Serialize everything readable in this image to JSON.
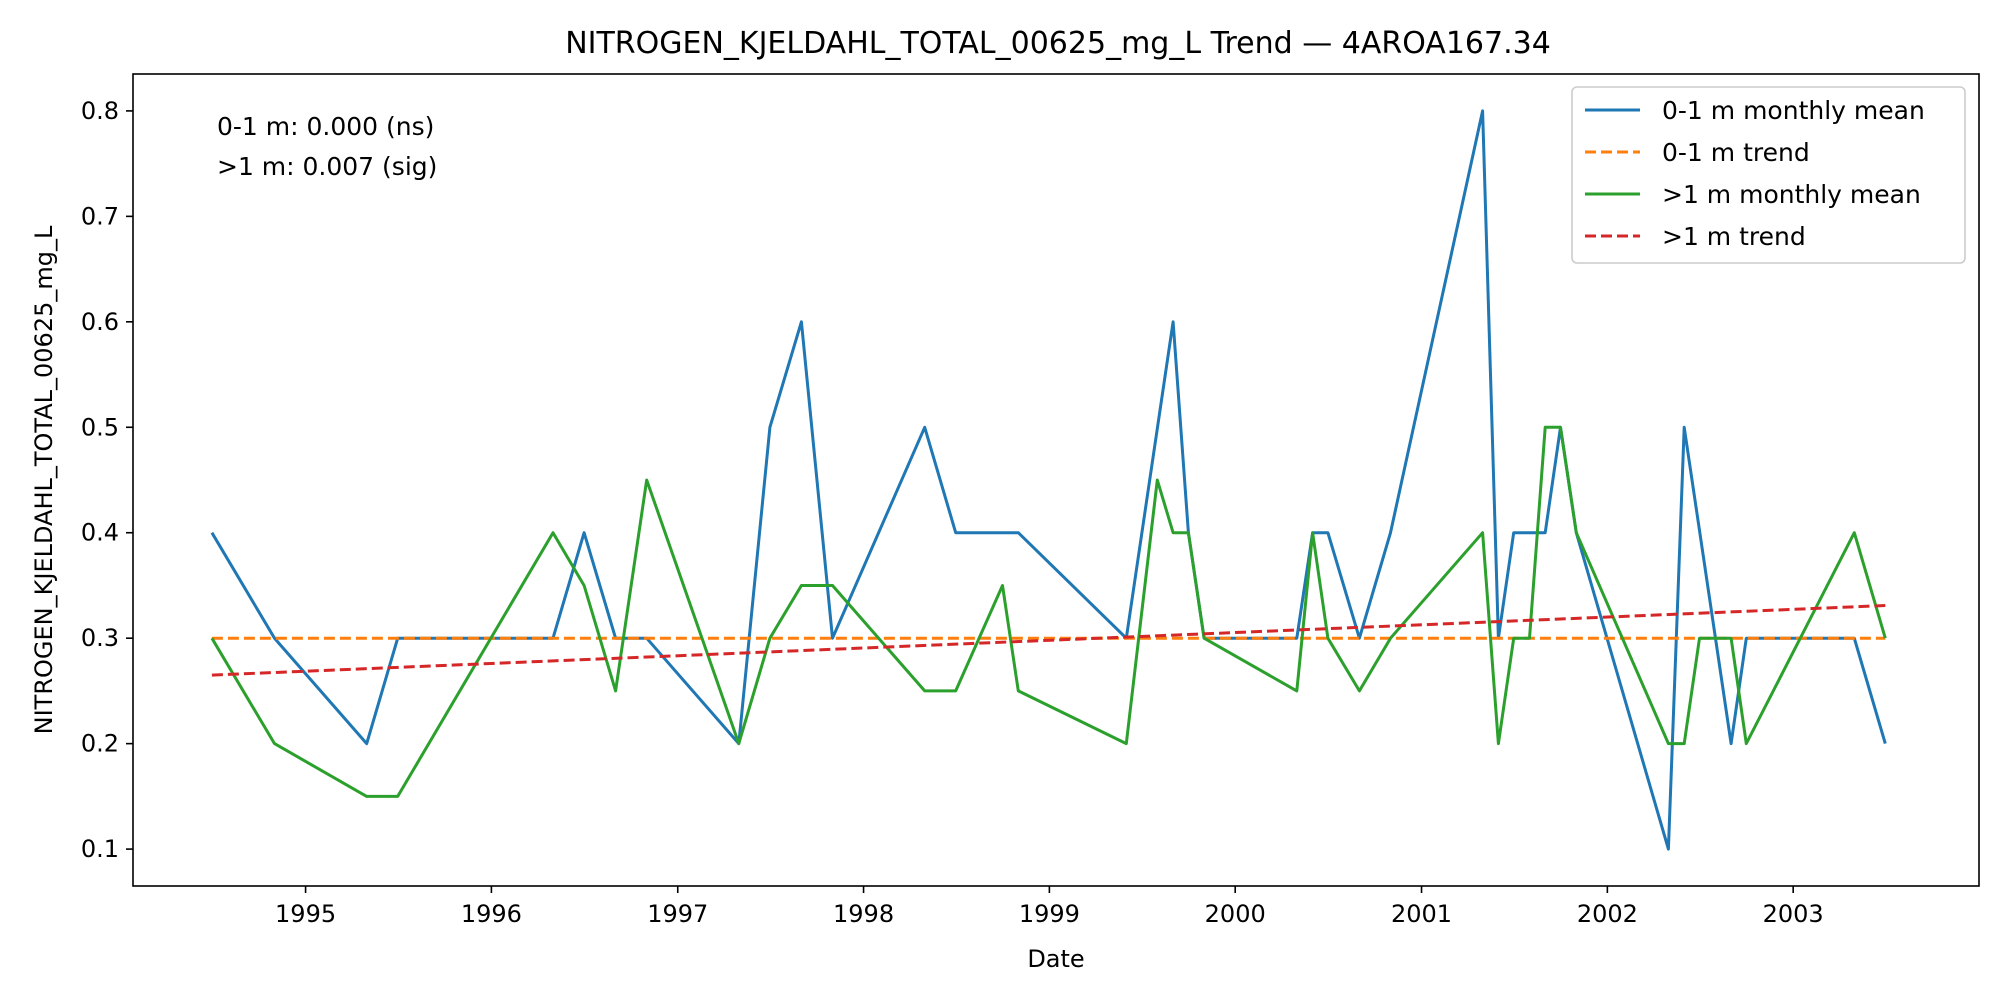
{
  "chart_data": {
    "type": "line",
    "title": "NITROGEN_KJELDAHL_TOTAL_00625_mg_L Trend — 4AROA167.34",
    "xlabel": "Date",
    "ylabel": "NITROGEN_KJELDAHL_TOTAL_00625_mg_L",
    "xlim": [
      "1994-01-27",
      "2004-01-01"
    ],
    "ylim": [
      0.065,
      0.835
    ],
    "x_ticks": [
      "1995",
      "1996",
      "1997",
      "1998",
      "1999",
      "2000",
      "2001",
      "2002",
      "2003"
    ],
    "y_ticks": [
      "0.1",
      "0.2",
      "0.3",
      "0.4",
      "0.5",
      "0.6",
      "0.7",
      "0.8"
    ],
    "grid": false,
    "legend_position": "top-right",
    "annotations": [
      "0-1 m: 0.000 (ns)",
      ">1 m: 0.007 (sig)"
    ],
    "series": [
      {
        "name": "0-1 m monthly mean",
        "color": "#1f77b4",
        "style": "solid",
        "points": [
          [
            "1994-07-01",
            0.4
          ],
          [
            "1994-11-01",
            0.3
          ],
          [
            "1995-05-01",
            0.2
          ],
          [
            "1995-07-01",
            0.3
          ],
          [
            "1996-05-01",
            0.3
          ],
          [
            "1996-07-01",
            0.4
          ],
          [
            "1996-09-01",
            0.3
          ],
          [
            "1996-11-01",
            0.3
          ],
          [
            "1997-05-01",
            0.2
          ],
          [
            "1997-07-01",
            0.5
          ],
          [
            "1997-09-01",
            0.6
          ],
          [
            "1997-11-01",
            0.3
          ],
          [
            "1998-05-01",
            0.5
          ],
          [
            "1998-07-01",
            0.4
          ],
          [
            "1998-11-01",
            0.4
          ],
          [
            "1999-06-01",
            0.3
          ],
          [
            "1999-09-01",
            0.6
          ],
          [
            "1999-10-01",
            0.4
          ],
          [
            "1999-11-01",
            0.3
          ],
          [
            "2000-05-01",
            0.3
          ],
          [
            "2000-06-01",
            0.4
          ],
          [
            "2000-07-01",
            0.4
          ],
          [
            "2000-09-01",
            0.3
          ],
          [
            "2000-11-01",
            0.4
          ],
          [
            "2001-05-01",
            0.8
          ],
          [
            "2001-06-01",
            0.3
          ],
          [
            "2001-07-01",
            0.4
          ],
          [
            "2001-09-01",
            0.4
          ],
          [
            "2001-10-01",
            0.5
          ],
          [
            "2001-11-01",
            0.4
          ],
          [
            "2002-05-01",
            0.1
          ],
          [
            "2002-06-01",
            0.5
          ],
          [
            "2002-09-01",
            0.2
          ],
          [
            "2002-10-01",
            0.3
          ],
          [
            "2003-05-01",
            0.3
          ],
          [
            "2003-07-01",
            0.2
          ]
        ]
      },
      {
        "name": "0-1 m trend",
        "color": "#ff7f0e",
        "style": "dashed",
        "points": [
          [
            "1994-07-01",
            0.3
          ],
          [
            "2003-07-01",
            0.3
          ]
        ]
      },
      {
        "name": ">1 m monthly mean",
        "color": "#2ca02c",
        "style": "solid",
        "points": [
          [
            "1994-07-01",
            0.3
          ],
          [
            "1994-11-01",
            0.2
          ],
          [
            "1995-05-01",
            0.15
          ],
          [
            "1995-07-01",
            0.15
          ],
          [
            "1996-05-01",
            0.4
          ],
          [
            "1996-07-01",
            0.35
          ],
          [
            "1996-09-01",
            0.25
          ],
          [
            "1996-11-01",
            0.45
          ],
          [
            "1997-05-01",
            0.2
          ],
          [
            "1997-07-01",
            0.3
          ],
          [
            "1997-09-01",
            0.35
          ],
          [
            "1997-11-01",
            0.35
          ],
          [
            "1998-05-01",
            0.25
          ],
          [
            "1998-07-01",
            0.25
          ],
          [
            "1998-10-01",
            0.35
          ],
          [
            "1998-11-01",
            0.25
          ],
          [
            "1999-06-01",
            0.2
          ],
          [
            "1999-08-01",
            0.45
          ],
          [
            "1999-09-01",
            0.4
          ],
          [
            "1999-10-01",
            0.4
          ],
          [
            "1999-11-01",
            0.3
          ],
          [
            "2000-05-01",
            0.25
          ],
          [
            "2000-06-01",
            0.4
          ],
          [
            "2000-07-01",
            0.3
          ],
          [
            "2000-09-01",
            0.25
          ],
          [
            "2000-11-01",
            0.3
          ],
          [
            "2001-05-01",
            0.4
          ],
          [
            "2001-06-01",
            0.2
          ],
          [
            "2001-07-01",
            0.3
          ],
          [
            "2001-08-01",
            0.3
          ],
          [
            "2001-09-01",
            0.5
          ],
          [
            "2001-10-01",
            0.5
          ],
          [
            "2001-11-01",
            0.4
          ],
          [
            "2002-05-01",
            0.2
          ],
          [
            "2002-06-01",
            0.2
          ],
          [
            "2002-07-01",
            0.3
          ],
          [
            "2002-09-01",
            0.3
          ],
          [
            "2002-10-01",
            0.2
          ],
          [
            "2003-05-01",
            0.4
          ],
          [
            "2003-07-01",
            0.3
          ]
        ]
      },
      {
        "name": ">1 m trend",
        "color": "#d62728",
        "style": "dashed",
        "points": [
          [
            "1994-07-01",
            0.265
          ],
          [
            "2003-07-01",
            0.331
          ]
        ]
      }
    ]
  }
}
